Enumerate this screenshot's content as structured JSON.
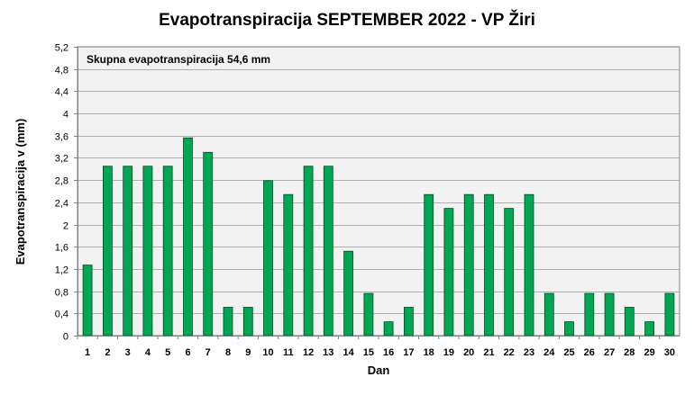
{
  "chart_data": {
    "type": "bar",
    "title": "Evapotranspiracija  SEPTEMBER  2022 - VP Žiri",
    "xlabel": "Dan",
    "ylabel": "Evapotranspiracija v  (mm)",
    "annotation": "Skupna evapotranspiracija 54,6 mm",
    "categories": [
      "1",
      "2",
      "3",
      "4",
      "5",
      "6",
      "7",
      "8",
      "9",
      "10",
      "11",
      "12",
      "13",
      "14",
      "15",
      "16",
      "17",
      "18",
      "19",
      "20",
      "21",
      "22",
      "23",
      "24",
      "25",
      "26",
      "27",
      "28",
      "29",
      "30"
    ],
    "values": [
      1.27,
      3.05,
      3.05,
      3.05,
      3.05,
      3.56,
      3.3,
      0.51,
      0.51,
      2.79,
      2.54,
      3.05,
      3.05,
      1.52,
      0.76,
      0.25,
      0.51,
      2.54,
      2.29,
      2.54,
      2.54,
      2.29,
      2.54,
      0.76,
      0.25,
      0.76,
      0.76,
      0.51,
      0.25,
      0.76
    ],
    "ylim": [
      0,
      5.2
    ],
    "yticks": [
      "0",
      "0,4",
      "0,8",
      "1,2",
      "1,6",
      "2",
      "2,4",
      "2,8",
      "3,2",
      "3,6",
      "4",
      "4,4",
      "4,8",
      "5,2"
    ],
    "ytick_values": [
      0,
      0.4,
      0.8,
      1.2,
      1.6,
      2.0,
      2.4,
      2.8,
      3.2,
      3.6,
      4.0,
      4.4,
      4.8,
      5.2
    ],
    "grid": true,
    "colors": {
      "bar_fill": "#00a651",
      "bar_stroke": "#004d26",
      "plot_background": "#f2f2f2",
      "gridline": "#b0b0b0",
      "axis": "#808080"
    }
  }
}
